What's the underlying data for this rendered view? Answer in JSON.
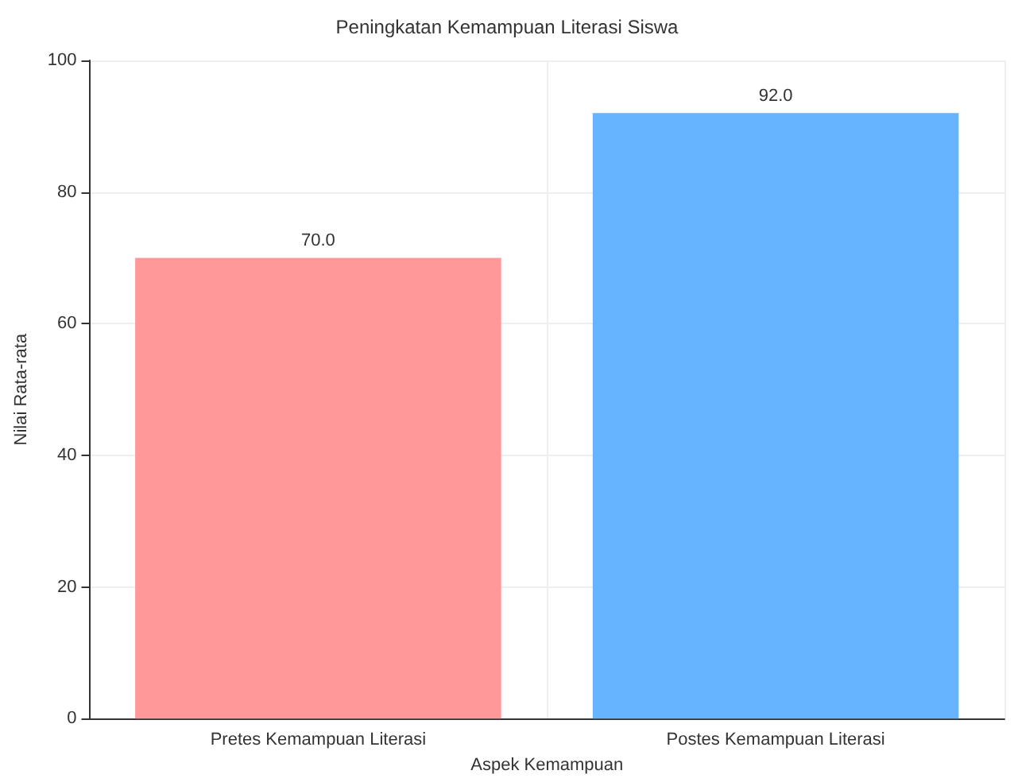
{
  "chart_data": {
    "type": "bar",
    "title": "Peningkatan Kemampuan Literasi Siswa",
    "xlabel": "Aspek Kemampuan",
    "ylabel": "Nilai Rata-rata",
    "categories": [
      "Pretes Kemampuan Literasi",
      "Postes Kemampuan Literasi"
    ],
    "values": [
      70,
      92
    ],
    "colors": [
      "#ff9999",
      "#66b3ff"
    ],
    "value_labels": [
      "70.0",
      "92.0"
    ],
    "ylim": [
      0,
      100
    ],
    "yticks": [
      0,
      20,
      40,
      60,
      80,
      100
    ],
    "grid": true
  }
}
